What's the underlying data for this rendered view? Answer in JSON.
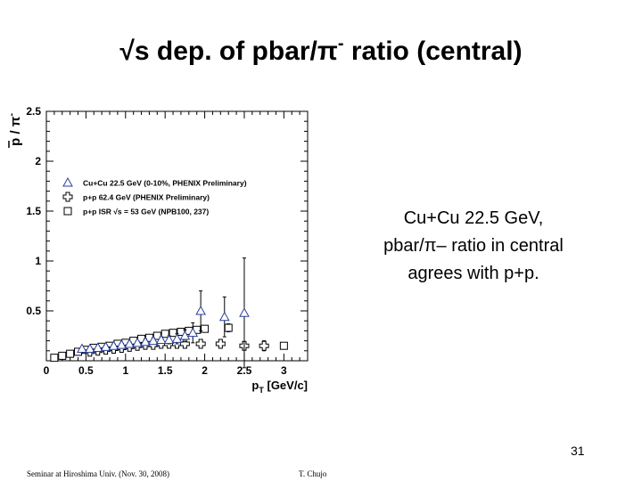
{
  "slide": {
    "title_pre": "√s dep. of pbar/π",
    "title_sup": "-",
    "title_post": " ratio (central)",
    "note_lines": [
      "Cu+Cu 22.5 GeV,",
      "pbar/π– ratio in central",
      "agrees with p+p."
    ],
    "slide_number": "31",
    "footer_left": "Seminar at Hiroshima Univ. (Nov. 30, 2008)",
    "footer_right": "T. Chujo"
  },
  "chart_data": {
    "type": "scatter",
    "xlabel": "p",
    "xlabel_sub": "T",
    "xlabel_unit": " [GeV/c]",
    "ylabel": "p / π",
    "ylabel_sup": "-",
    "xlim": [
      0,
      3.3
    ],
    "ylim": [
      0,
      2.5
    ],
    "x_ticks": [
      0,
      0.5,
      1,
      1.5,
      2,
      2.5,
      3
    ],
    "x_tick_labels": [
      "0",
      "0.5",
      "1",
      "1.5",
      "2",
      "2.5",
      "3"
    ],
    "y_ticks": [
      0.5,
      1,
      1.5,
      2,
      2.5
    ],
    "y_tick_labels": [
      "0.5",
      "1",
      "1.5",
      "2",
      "2.5"
    ],
    "grid": false,
    "legend_position": "upper-left",
    "series": [
      {
        "name": "Cu+Cu 22.5  GeV (0-10%, PHENIX Preliminary)",
        "marker": "triangle",
        "x": [
          0.45,
          0.55,
          0.65,
          0.75,
          0.85,
          0.95,
          1.05,
          1.15,
          1.25,
          1.35,
          1.45,
          1.55,
          1.65,
          1.75,
          1.85,
          1.95,
          2.25,
          2.5
        ],
        "y": [
          0.12,
          0.12,
          0.13,
          0.14,
          0.15,
          0.16,
          0.17,
          0.18,
          0.19,
          0.2,
          0.21,
          0.21,
          0.22,
          0.25,
          0.28,
          0.5,
          0.44,
          0.48
        ],
        "yerr": [
          0.02,
          0.02,
          0.02,
          0.02,
          0.02,
          0.02,
          0.02,
          0.02,
          0.03,
          0.03,
          0.03,
          0.04,
          0.05,
          0.06,
          0.1,
          0.2,
          0.2,
          0.55
        ]
      },
      {
        "name": "p+p 62.4 GeV (PHENIX Preliminary)",
        "marker": "open-cross",
        "x": [
          0.55,
          0.65,
          0.75,
          0.85,
          0.95,
          1.05,
          1.15,
          1.25,
          1.35,
          1.45,
          1.55,
          1.65,
          1.75,
          1.95,
          2.2,
          2.5,
          2.75
        ],
        "y": [
          0.09,
          0.1,
          0.11,
          0.12,
          0.13,
          0.14,
          0.15,
          0.16,
          0.16,
          0.17,
          0.17,
          0.17,
          0.17,
          0.17,
          0.17,
          0.15,
          0.15
        ],
        "yerr": [
          0.01,
          0.01,
          0.01,
          0.01,
          0.01,
          0.01,
          0.01,
          0.01,
          0.01,
          0.01,
          0.02,
          0.02,
          0.02,
          0.03,
          0.03,
          0.04,
          0.05
        ]
      },
      {
        "name": "p+p ISR √s = 53 GeV (NPB100, 237)",
        "marker": "open-square",
        "x": [
          0.1,
          0.2,
          0.3,
          0.4,
          0.5,
          0.6,
          0.7,
          0.8,
          0.9,
          1.0,
          1.1,
          1.2,
          1.3,
          1.4,
          1.5,
          1.6,
          1.7,
          1.8,
          1.9,
          2.0,
          2.3,
          3.0
        ],
        "y": [
          0.03,
          0.05,
          0.07,
          0.09,
          0.11,
          0.13,
          0.14,
          0.15,
          0.17,
          0.18,
          0.2,
          0.22,
          0.23,
          0.25,
          0.27,
          0.28,
          0.29,
          0.3,
          0.31,
          0.32,
          0.33,
          0.15
        ],
        "yerr": [
          0.005,
          0.005,
          0.005,
          0.005,
          0.005,
          0.005,
          0.005,
          0.01,
          0.01,
          0.01,
          0.01,
          0.01,
          0.01,
          0.01,
          0.02,
          0.02,
          0.02,
          0.03,
          0.03,
          0.03,
          0.04,
          0.02
        ]
      }
    ]
  },
  "colors": {
    "triangle": "#2b3f9a",
    "text": "#000000"
  }
}
